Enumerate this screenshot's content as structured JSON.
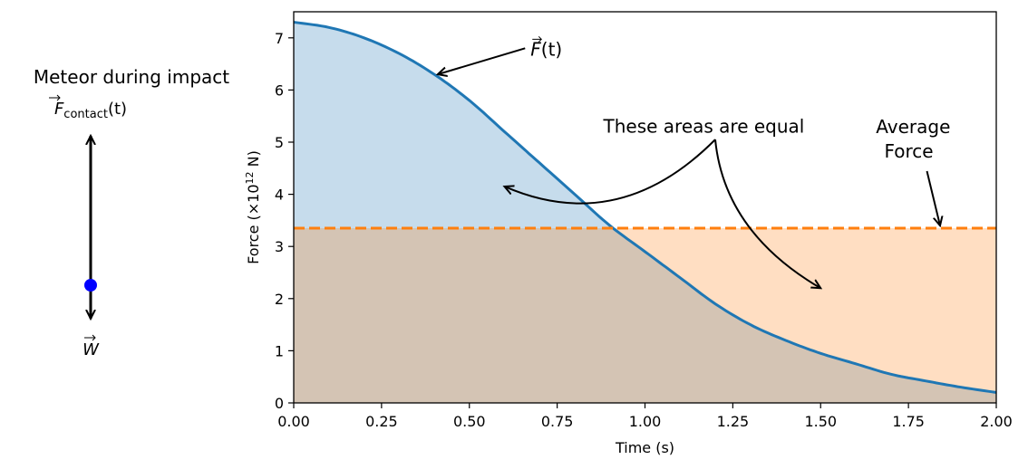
{
  "diagram": {
    "title": "Meteor during impact",
    "contact_label": {
      "symbol": "F",
      "subscript": "contact",
      "suffix": "(t)"
    },
    "weight_label": "W",
    "dot_color": "#0000ff"
  },
  "chart_data": {
    "type": "area",
    "xlabel": "Time (s)",
    "ylabel": {
      "prefix": "Force (×10",
      "exp": "12",
      "suffix": " N)"
    },
    "xlim": [
      0,
      2.0
    ],
    "ylim": [
      0,
      7.5
    ],
    "x_ticks": [
      0,
      0.25,
      0.5,
      0.75,
      1.0,
      1.25,
      1.5,
      1.75,
      2.0
    ],
    "x_tick_labels": [
      "0.00",
      "0.25",
      "0.50",
      "0.75",
      "1.00",
      "1.25",
      "1.50",
      "1.75",
      "2.00"
    ],
    "y_ticks": [
      0,
      1,
      2,
      3,
      4,
      5,
      6,
      7
    ],
    "y_tick_labels": [
      "0",
      "1",
      "2",
      "3",
      "4",
      "5",
      "6",
      "7"
    ],
    "series": [
      {
        "name": "F(t)",
        "color": "#1f77b4",
        "x": [
          0,
          0.1,
          0.2,
          0.3,
          0.4,
          0.5,
          0.6,
          0.7,
          0.8,
          0.9,
          1.0,
          1.1,
          1.2,
          1.3,
          1.4,
          1.5,
          1.6,
          1.7,
          1.8,
          1.9,
          2.0
        ],
        "y": [
          7.3,
          7.2,
          7.0,
          6.7,
          6.3,
          5.8,
          5.2,
          4.6,
          4.0,
          3.4,
          2.9,
          2.4,
          1.9,
          1.5,
          1.2,
          0.95,
          0.75,
          0.55,
          0.42,
          0.3,
          0.2
        ]
      },
      {
        "name": "Average Force",
        "color": "#ff7f0e",
        "value": 3.35
      }
    ],
    "fill_colors": {
      "above_average": "#c6dcec",
      "below_curve": "#d4c4b4",
      "below_average": "#ffdec2"
    },
    "annotations": {
      "curve_label": {
        "symbol": "F",
        "suffix": "(t)",
        "x": 0.7,
        "y": 6.8,
        "arrow_x": 0.41,
        "arrow_y": 6.3
      },
      "areas_equal": {
        "text": "These areas are equal",
        "x": 0.92,
        "y": 5.3,
        "tip_x": 1.2,
        "tip_y": 5.05,
        "left_x": 0.6,
        "left_y": 4.15,
        "right_x": 1.5,
        "right_y": 2.2
      },
      "average_label": {
        "line1": "Average",
        "line2": "Force",
        "x": 1.72,
        "y": 5.0,
        "arrow_x": 1.84,
        "arrow_y": 3.4
      }
    }
  }
}
